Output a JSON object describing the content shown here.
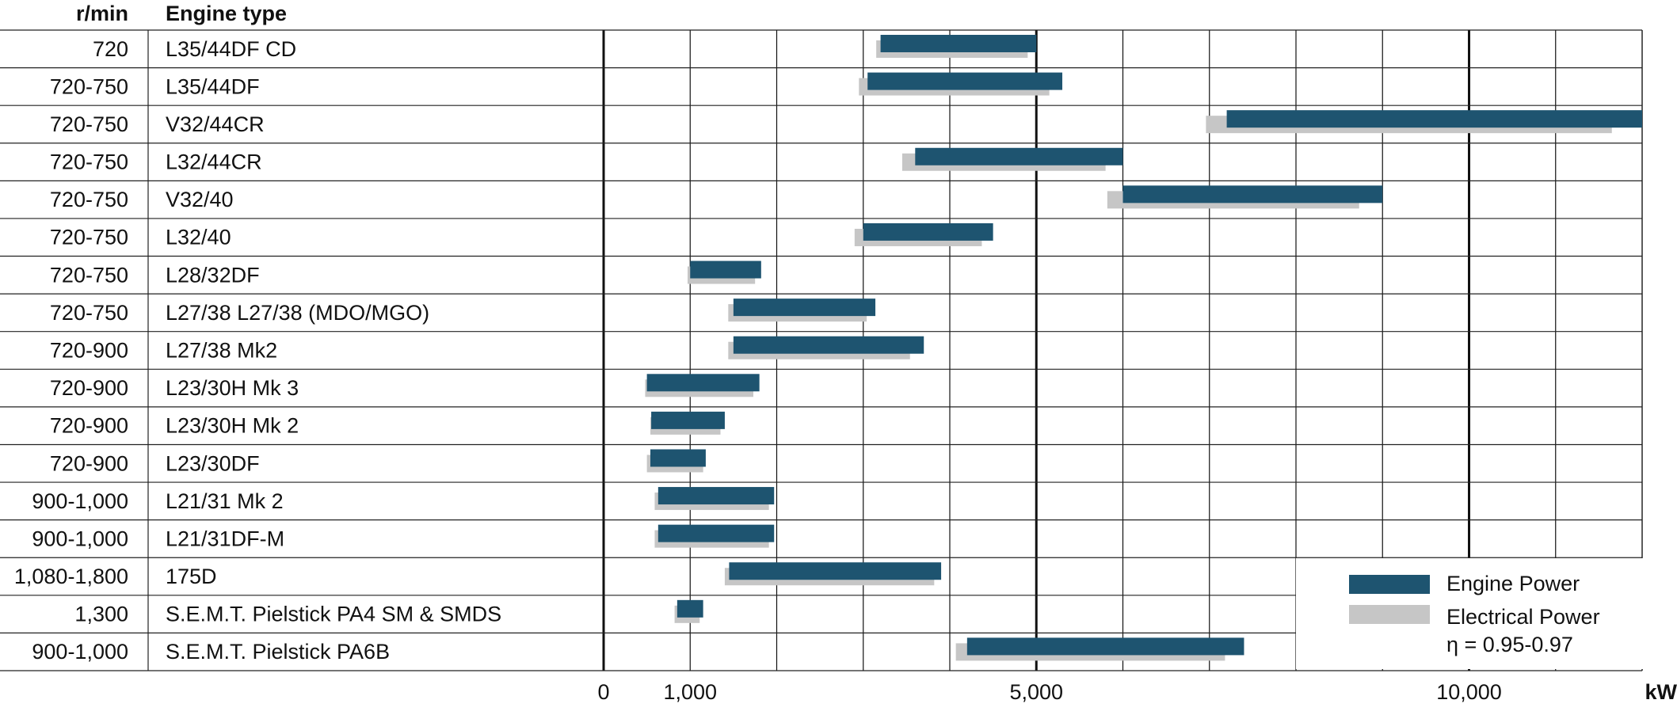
{
  "chart_data": {
    "type": "bar",
    "subtype": "floating-range",
    "headers": {
      "rpm": "r/min",
      "engine": "Engine type"
    },
    "rows": [
      {
        "rpm": "720",
        "engine": "L35/44DF CD",
        "engine_power": [
          3200,
          5000
        ],
        "electrical_power": [
          3150,
          4900
        ]
      },
      {
        "rpm": "720-750",
        "engine": "L35/44DF",
        "engine_power": [
          3050,
          5300
        ],
        "electrical_power": [
          2950,
          5150
        ]
      },
      {
        "rpm": "720-750",
        "engine": "V32/44CR",
        "engine_power": [
          7200,
          12000
        ],
        "electrical_power": [
          6960,
          11650
        ]
      },
      {
        "rpm": "720-750",
        "engine": "L32/44CR",
        "engine_power": [
          3600,
          6000
        ],
        "electrical_power": [
          3450,
          5800
        ]
      },
      {
        "rpm": "720-750",
        "engine": "V32/40",
        "engine_power": [
          6000,
          9000
        ],
        "electrical_power": [
          5820,
          8730
        ]
      },
      {
        "rpm": "720-750",
        "engine": "L32/40",
        "engine_power": [
          3000,
          4500
        ],
        "electrical_power": [
          2900,
          4370
        ]
      },
      {
        "rpm": "720-750",
        "engine": "L28/32DF",
        "engine_power": [
          1000,
          1820
        ],
        "electrical_power": [
          970,
          1750
        ]
      },
      {
        "rpm": "720-750",
        "engine": "L27/38 L27/38 (MDO/MGO)",
        "engine_power": [
          1500,
          3140
        ],
        "electrical_power": [
          1440,
          3040
        ]
      },
      {
        "rpm": "720-900",
        "engine": "L27/38 Mk2",
        "engine_power": [
          1500,
          3700
        ],
        "electrical_power": [
          1440,
          3540
        ]
      },
      {
        "rpm": "720-900",
        "engine": "L23/30H Mk 3",
        "engine_power": [
          500,
          1800
        ],
        "electrical_power": [
          480,
          1730
        ]
      },
      {
        "rpm": "720-900",
        "engine": "L23/30H Mk 2",
        "engine_power": [
          550,
          1400
        ],
        "electrical_power": [
          540,
          1350
        ]
      },
      {
        "rpm": "720-900",
        "engine": "L23/30DF",
        "engine_power": [
          540,
          1180
        ],
        "electrical_power": [
          500,
          1150
        ]
      },
      {
        "rpm": "900-1,000",
        "engine": "L21/31 Mk 2",
        "engine_power": [
          630,
          1970
        ],
        "electrical_power": [
          590,
          1910
        ]
      },
      {
        "rpm": "900-1,000",
        "engine": "L21/31DF-M",
        "engine_power": [
          630,
          1970
        ],
        "electrical_power": [
          590,
          1910
        ]
      },
      {
        "rpm": "1,080-1,800",
        "engine": "175D",
        "engine_power": [
          1450,
          3900
        ],
        "electrical_power": [
          1400,
          3820
        ]
      },
      {
        "rpm": "1,300",
        "engine": "S.E.M.T. Pielstick PA4 SM & SMDS",
        "engine_power": [
          850,
          1150
        ],
        "electrical_power": [
          820,
          1110
        ]
      },
      {
        "rpm": "900-1,000",
        "engine": "S.E.M.T. Pielstick PA6B",
        "engine_power": [
          4200,
          7400
        ],
        "electrical_power": [
          4070,
          7180
        ]
      }
    ],
    "x_axis": {
      "range": [
        0,
        12000
      ],
      "ticks": [
        0,
        1000,
        5000,
        10000
      ],
      "tick_labels": [
        "0",
        "1,000",
        "5,000",
        "10,000"
      ],
      "unit": "kW",
      "grid_step": 1000,
      "major_lines": [
        0,
        5000,
        10000
      ]
    },
    "legend": {
      "position": "bottom-right",
      "items": [
        {
          "name": "Engine Power",
          "color": "#1e5470"
        },
        {
          "name": "Electrical Power",
          "color": "#c6c6c6"
        }
      ],
      "note": "η = 0.95-0.97"
    }
  }
}
